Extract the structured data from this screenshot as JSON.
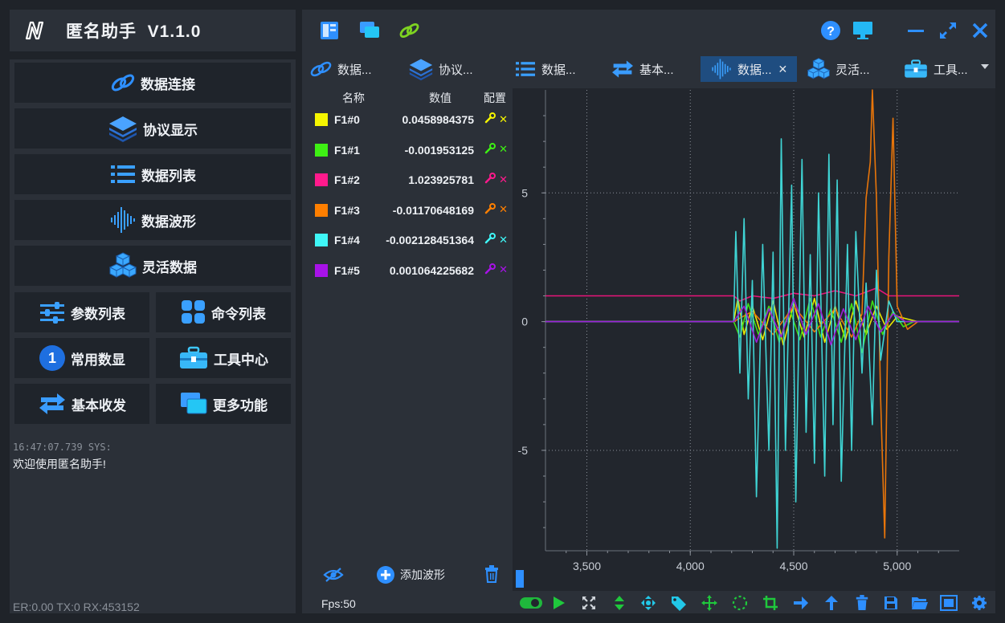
{
  "app": {
    "title": "匿名助手  V1.1.0"
  },
  "menu": {
    "items": [
      {
        "label": "数据连接",
        "icon": "link-icon"
      },
      {
        "label": "协议显示",
        "icon": "layers-icon"
      },
      {
        "label": "数据列表",
        "icon": "list-icon"
      },
      {
        "label": "数据波形",
        "icon": "waveform-icon"
      },
      {
        "label": "灵活数据",
        "icon": "cubes-icon"
      }
    ],
    "pairs": [
      {
        "label": "参数列表",
        "icon": "sliders-icon"
      },
      {
        "label": "命令列表",
        "icon": "grid-icon"
      },
      {
        "label": "常用数显",
        "icon": "number-one-icon"
      },
      {
        "label": "工具中心",
        "icon": "toolbox-icon"
      },
      {
        "label": "基本收发",
        "icon": "swap-arrows-icon"
      },
      {
        "label": "更多功能",
        "icon": "windows-icon"
      }
    ],
    "one_glyph": "1"
  },
  "log": {
    "time": "16:47:07.739 SYS:",
    "message": "欢迎使用匿名助手!",
    "status": "ER:0.00 TX:0 RX:453152"
  },
  "tabs": [
    {
      "label": "数据...",
      "icon": "link-icon"
    },
    {
      "label": "协议...",
      "icon": "layers-icon"
    },
    {
      "label": "数据...",
      "icon": "list-icon"
    },
    {
      "label": "基本...",
      "icon": "swap-arrows-icon"
    },
    {
      "label": "数据...",
      "icon": "waveform-icon",
      "active": true
    },
    {
      "label": "灵活...",
      "icon": "cubes-icon"
    },
    {
      "label": "工具...",
      "icon": "toolbox-icon"
    }
  ],
  "table": {
    "headers": {
      "name": "名称",
      "value": "数值",
      "config": "配置"
    },
    "rows": [
      {
        "name": "F1#0",
        "value": "0.0458984375",
        "color": "#f5f500"
      },
      {
        "name": "F1#1",
        "value": "-0.001953125",
        "color": "#3ef014"
      },
      {
        "name": "F1#2",
        "value": "1.023925781",
        "color": "#ff1a8c"
      },
      {
        "name": "F1#3",
        "value": "-0.01170648169",
        "color": "#ff7f00"
      },
      {
        "name": "F1#4",
        "value": "-0.002128451364",
        "color": "#3ff7f7"
      },
      {
        "name": "F1#5",
        "value": "0.001064225682",
        "color": "#a812e8"
      }
    ],
    "add_wave": "添加波形",
    "fps": "Fps:50"
  },
  "chart_data": {
    "type": "line",
    "x_ticks": [
      "3,500",
      "4,000",
      "4,500",
      "5,000"
    ],
    "y_ticks": [
      "5",
      "0",
      "-5"
    ],
    "xlim": [
      3300,
      5300
    ],
    "ylim": [
      -8.9,
      9.0
    ],
    "grid": true,
    "series": [
      {
        "name": "F1#0",
        "color": "#e8e800",
        "x": [
          3300,
          4210,
          4230,
          4260,
          4300,
          4350,
          4400,
          4450,
          4500,
          4550,
          4600,
          4650,
          4700,
          4750,
          4800,
          4850,
          4900,
          4950,
          5000,
          5050,
          5100,
          5150,
          5300
        ],
        "y": [
          0,
          0,
          0.9,
          -0.5,
          0.6,
          -0.7,
          0.8,
          -0.9,
          0.7,
          -0.6,
          0.9,
          -0.8,
          0.6,
          -0.7,
          0.8,
          -0.5,
          0.6,
          -0.3,
          0.2,
          0.1,
          0,
          0,
          0
        ]
      },
      {
        "name": "F1#1",
        "color": "#3ee014",
        "x": [
          3300,
          4210,
          4240,
          4280,
          4330,
          4380,
          4430,
          4480,
          4530,
          4580,
          4630,
          4680,
          4730,
          4780,
          4830,
          4880,
          4930,
          4980,
          5030,
          5080,
          5300
        ],
        "y": [
          0,
          0,
          -0.6,
          0.7,
          -0.5,
          0.6,
          -0.8,
          0.5,
          -0.7,
          0.9,
          -0.6,
          0.5,
          -0.8,
          0.7,
          -1.2,
          0.8,
          -0.5,
          0.4,
          -0.2,
          0,
          0
        ]
      },
      {
        "name": "F1#2",
        "color": "#e8147a",
        "x": [
          3300,
          4210,
          4240,
          4300,
          4400,
          4500,
          4600,
          4700,
          4800,
          4900,
          4960,
          5000,
          5100,
          5300
        ],
        "y": [
          1.0,
          1.0,
          0.8,
          1.0,
          0.9,
          1.1,
          1.0,
          1.2,
          1.0,
          1.3,
          1.0,
          1.0,
          1.0,
          1.0
        ]
      },
      {
        "name": "F1#3",
        "color": "#e8750a",
        "x": [
          3300,
          4210,
          4300,
          4400,
          4500,
          4600,
          4700,
          4780,
          4830,
          4850,
          4870,
          4880,
          4900,
          4920,
          4940,
          4960,
          4980,
          5000,
          5050,
          5100,
          5300
        ],
        "y": [
          0,
          0,
          0.4,
          -0.5,
          0.6,
          -0.4,
          0.5,
          -0.6,
          0.3,
          4.8,
          6.2,
          9.0,
          4.8,
          -3.0,
          -8.4,
          2.5,
          7.9,
          0.6,
          -0.3,
          0,
          0
        ]
      },
      {
        "name": "F1#4",
        "color": "#3fd4d4",
        "x": [
          3300,
          4210,
          4220,
          4240,
          4260,
          4280,
          4300,
          4320,
          4350,
          4380,
          4400,
          4420,
          4440,
          4460,
          4490,
          4510,
          4540,
          4560,
          4580,
          4600,
          4620,
          4650,
          4670,
          4690,
          4710,
          4730,
          4760,
          4780,
          4800,
          4830,
          4850,
          4880,
          4900,
          4920,
          4960,
          5000,
          5050,
          5100,
          5300
        ],
        "y": [
          0,
          0,
          3.5,
          -2,
          4,
          -3,
          1.6,
          -6.8,
          3.0,
          -5.0,
          2.7,
          -8.8,
          7.1,
          -5.0,
          5.3,
          -7.0,
          6.3,
          -4.3,
          2.6,
          -5.5,
          5.0,
          -6.0,
          6.5,
          -4.0,
          5.5,
          -6.2,
          3.0,
          -5.0,
          3.5,
          -2.0,
          1.5,
          -4.0,
          2.0,
          -1.5,
          0.8,
          0,
          0,
          0,
          0
        ]
      },
      {
        "name": "F1#5",
        "color": "#9b20d8",
        "x": [
          3300,
          4210,
          4260,
          4320,
          4380,
          4440,
          4500,
          4560,
          4620,
          4680,
          4740,
          4800,
          4860,
          4920,
          4980,
          5040,
          5300
        ],
        "y": [
          0,
          0,
          0.6,
          -0.8,
          0.5,
          -0.6,
          0.9,
          -0.5,
          0.7,
          -0.9,
          0.5,
          -0.7,
          0.6,
          -0.4,
          0.3,
          0,
          0
        ]
      }
    ]
  }
}
